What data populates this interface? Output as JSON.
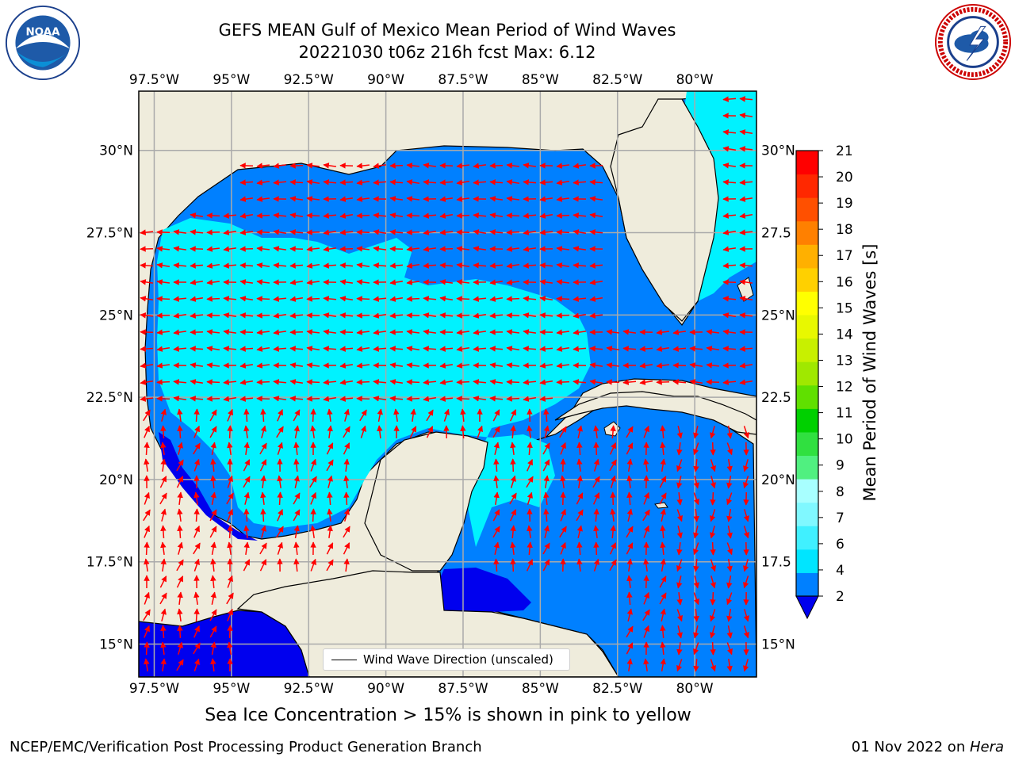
{
  "title": {
    "line1": "GEFS MEAN Gulf of Mexico Mean Period of Wind Waves",
    "line2": "20221030 t06z 216h fcst   Max: 6.12"
  },
  "map": {
    "lon_range": [
      -98.0,
      -78.0
    ],
    "lat_range": [
      14.0,
      31.8
    ],
    "lon_ticks": [
      "97.5°W",
      "95°W",
      "92.5°W",
      "90°W",
      "87.5°W",
      "85°W",
      "82.5°W",
      "80°W"
    ],
    "lon_tick_values": [
      -97.5,
      -95,
      -92.5,
      -90,
      -87.5,
      -85,
      -82.5,
      -80
    ],
    "lat_ticks": [
      "30°N",
      "27.5°N",
      "25°N",
      "22.5°N",
      "20°N",
      "17.5°N",
      "15°N"
    ],
    "lat_tick_values": [
      30,
      27.5,
      25,
      22.5,
      20,
      17.5,
      15
    ],
    "right_lat_ticks": [
      "30°N",
      "27.5",
      "25°N",
      "22.5",
      "20°N",
      "17.5",
      "15°N"
    ],
    "grid": true,
    "land_color": "#efecdc",
    "ocean_color": "#0080ff",
    "arrow_color": "#ff0000",
    "legend_label": "Wind Wave Direction (unscaled)",
    "legend_position": "bottom-center"
  },
  "colorbar": {
    "title": "Mean Period of Wind Waves [s]",
    "tick_labels": [
      "2",
      "4",
      "6",
      "7",
      "8",
      "9",
      "10",
      "11",
      "12",
      "13",
      "14",
      "15",
      "16",
      "17",
      "18",
      "19",
      "20",
      "21"
    ],
    "colors": [
      "#0080ff",
      "#00e5ff",
      "#40f0ff",
      "#80f8ff",
      "#a8ffff",
      "#50f080",
      "#30e040",
      "#00d000",
      "#60e000",
      "#a0e800",
      "#c8f000",
      "#e8f800",
      "#ffff00",
      "#ffd000",
      "#ffb000",
      "#ff8000",
      "#ff5000",
      "#ff2800",
      "#ff0000"
    ],
    "extend_color": "#0000ee"
  },
  "subtitle": "Sea Ice Concentration > 15% is shown in pink to yellow",
  "footer": {
    "left": "NCEP/EMC/Verification Post Processing Product Generation Branch",
    "right_prefix": "01 Nov 2022 on ",
    "right_host": "Hera"
  },
  "logos": {
    "left": "noaa-logo",
    "right": "nws-logo"
  }
}
